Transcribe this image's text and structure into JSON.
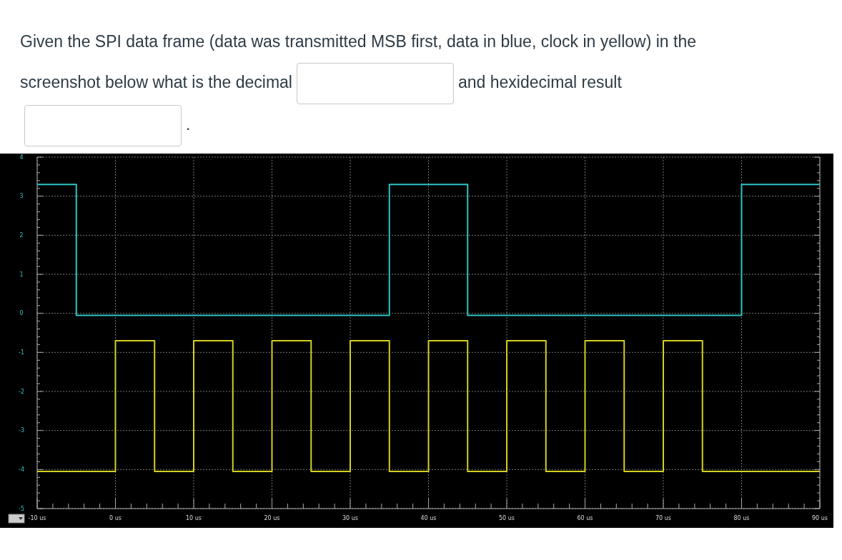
{
  "chart_data": {
    "type": "line",
    "title": "Given the SPI data frame (data was transmitted MSB first, data in blue, clock in yellow) in the screenshot below what is the decimal",
    "annotations": [
      "and hexidecimal result",
      "."
    ],
    "series": [
      {
        "color": "#2ec4c8",
        "x": [
          -10,
          -5,
          -5,
          35,
          35,
          45,
          45,
          80,
          80,
          90
        ],
        "values": [
          3.3,
          3.3,
          -0.05,
          -0.05,
          3.3,
          3.3,
          -0.05,
          -0.05,
          3.3,
          3.3
        ]
      },
      {
        "color": "#d4d020",
        "x": [
          -10,
          0,
          0,
          5,
          5,
          10,
          10,
          15,
          15,
          20,
          20,
          25,
          25,
          30,
          30,
          35,
          35,
          40,
          40,
          45,
          45,
          50,
          50,
          55,
          55,
          60,
          60,
          65,
          65,
          70,
          70,
          75,
          75,
          90
        ],
        "values": [
          -4.05,
          -4.05,
          -0.7,
          -0.7,
          -4.05,
          -4.05,
          -0.7,
          -0.7,
          -4.05,
          -4.05,
          -0.7,
          -0.7,
          -4.05,
          -4.05,
          -0.7,
          -0.7,
          -4.05,
          -4.05,
          -0.7,
          -0.7,
          -4.05,
          -4.05,
          -0.7,
          -0.7,
          -4.05,
          -4.05,
          -0.7,
          -0.7,
          -4.05,
          -4.05,
          -0.7,
          -0.7,
          -4.05,
          -4.05
        ]
      }
    ],
    "xlim": [
      -10,
      90
    ],
    "xticks": [
      {
        "value": -10,
        "label": "-10 us"
      },
      {
        "value": 0,
        "label": "0 us"
      },
      {
        "value": 10,
        "label": "10 us"
      },
      {
        "value": 20,
        "label": "20 us"
      },
      {
        "value": 30,
        "label": "30 us"
      },
      {
        "value": 40,
        "label": "40 us"
      },
      {
        "value": 50,
        "label": "50 us"
      },
      {
        "value": 60,
        "label": "60 us"
      },
      {
        "value": 70,
        "label": "70 us"
      },
      {
        "value": 80,
        "label": "80 us"
      },
      {
        "value": 90,
        "label": "90 us"
      }
    ],
    "ylim": [
      -5,
      4
    ],
    "yticks": [
      -5,
      -4,
      -3,
      -2,
      -1,
      0,
      1,
      2,
      3,
      4
    ],
    "grid": true,
    "marker": "none",
    "line_style": "solid"
  }
}
